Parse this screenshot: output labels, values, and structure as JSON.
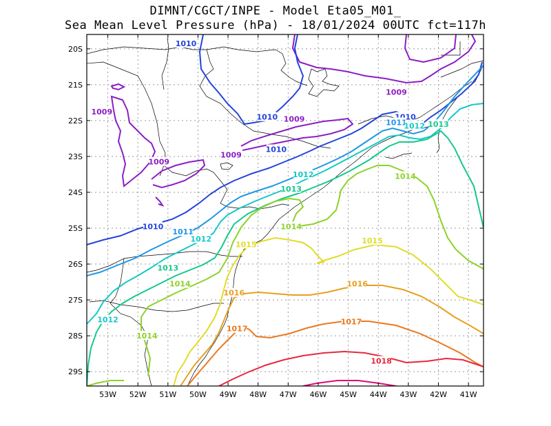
{
  "header": {
    "line1": "DIMNT/CGCT/INPE -  Model Eta05_M01_",
    "line2": "Sea Mean Level Pressure (hPa) - 18/01/2024 00UTC fct=117h"
  },
  "axes": {
    "lon_labels": [
      "53W",
      "52W",
      "51W",
      "50W",
      "49W",
      "48W",
      "47W",
      "46W",
      "45W",
      "44W",
      "43W",
      "42W",
      "41W"
    ],
    "lat_labels": [
      "20S",
      "21S",
      "22S",
      "23S",
      "24S",
      "25S",
      "26S",
      "27S",
      "28S",
      "29S"
    ],
    "lon_range": [
      -53.7,
      -40.5
    ],
    "lat_range": [
      -29.4,
      -19.6
    ]
  },
  "colors": {
    "1009": "#8c1dc4",
    "1010": "#2343dc",
    "1011": "#1d96e6",
    "1012": "#14c8c8",
    "1013": "#14c88c",
    "1014": "#8cd228",
    "1015": "#e1dc28",
    "1016": "#e6a01e",
    "1017": "#eb781e",
    "1018": "#e6283c",
    "1019": "#dc0a78"
  },
  "contour_labels": [
    {
      "text": "1010",
      "level": "1010",
      "lon": -50.4,
      "lat": -19.85
    },
    {
      "text": "1009",
      "level": "1009",
      "lon": -43.4,
      "lat": -21.2
    },
    {
      "text": "1009",
      "level": "1009",
      "lon": -53.2,
      "lat": -21.75
    },
    {
      "text": "1010",
      "level": "1010",
      "lon": -47.7,
      "lat": -21.9
    },
    {
      "text": "1009",
      "level": "1009",
      "lon": -46.8,
      "lat": -21.95
    },
    {
      "text": "1010",
      "level": "1010",
      "lon": -43.1,
      "lat": -21.9
    },
    {
      "text": "1011",
      "level": "1011",
      "lon": -43.4,
      "lat": -22.05
    },
    {
      "text": "1012",
      "level": "1012",
      "lon": -42.8,
      "lat": -22.15
    },
    {
      "text": "1013",
      "level": "1013",
      "lon": -42.0,
      "lat": -22.1
    },
    {
      "text": "1010",
      "level": "1010",
      "lon": -47.4,
      "lat": -22.8
    },
    {
      "text": "1009",
      "level": "1009",
      "lon": -48.9,
      "lat": -22.95
    },
    {
      "text": "1009",
      "level": "1009",
      "lon": -51.3,
      "lat": -23.15
    },
    {
      "text": "1012",
      "level": "1012",
      "lon": -46.5,
      "lat": -23.5
    },
    {
      "text": "1014",
      "level": "1014",
      "lon": -43.1,
      "lat": -23.55
    },
    {
      "text": "1013",
      "level": "1013",
      "lon": -46.9,
      "lat": -23.9
    },
    {
      "text": "1010",
      "level": "1010",
      "lon": -51.5,
      "lat": -24.95
    },
    {
      "text": "1014",
      "level": "1014",
      "lon": -46.9,
      "lat": -24.95
    },
    {
      "text": "1011",
      "level": "1011",
      "lon": -50.5,
      "lat": -25.1
    },
    {
      "text": "1012",
      "level": "1012",
      "lon": -49.9,
      "lat": -25.3
    },
    {
      "text": "1015",
      "level": "1015",
      "lon": -44.2,
      "lat": -25.35
    },
    {
      "text": "1015",
      "level": "1015",
      "lon": -48.4,
      "lat": -25.45
    },
    {
      "text": "1013",
      "level": "1013",
      "lon": -51.0,
      "lat": -26.1
    },
    {
      "text": "1014",
      "level": "1014",
      "lon": -50.6,
      "lat": -26.55
    },
    {
      "text": "1016",
      "level": "1016",
      "lon": -44.7,
      "lat": -26.55
    },
    {
      "text": "1016",
      "level": "1016",
      "lon": -48.8,
      "lat": -26.8
    },
    {
      "text": "1012",
      "level": "1012",
      "lon": -53.0,
      "lat": -27.55
    },
    {
      "text": "1017",
      "level": "1017",
      "lon": -44.9,
      "lat": -27.6
    },
    {
      "text": "1017",
      "level": "1017",
      "lon": -48.7,
      "lat": -27.8
    },
    {
      "text": "1014",
      "level": "1014",
      "lon": -51.7,
      "lat": -28.0
    },
    {
      "text": "1018",
      "level": "1018",
      "lon": -43.9,
      "lat": -28.7
    }
  ]
}
